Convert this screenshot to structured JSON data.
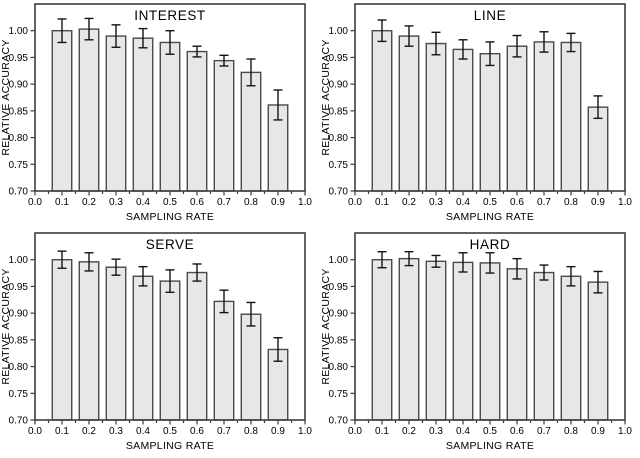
{
  "figure": {
    "background": "#ffffff",
    "bar_fill": "#e7e7e7",
    "bar_stroke": "#4a4a4a",
    "frame_color": "#3d3d3d",
    "tick_color": "#3d3d3d",
    "error_bar_color": "#141414",
    "text_color": "#000000"
  },
  "chart_data": [
    {
      "type": "bar",
      "title": "INTEREST",
      "xlabel": "SAMPLING RATE",
      "ylabel": "RELATIVE ACCURACY",
      "categories": [
        0.1,
        0.2,
        0.3,
        0.4,
        0.5,
        0.6,
        0.7,
        0.8,
        0.9
      ],
      "values": [
        1.0,
        1.003,
        0.99,
        0.986,
        0.978,
        0.961,
        0.944,
        0.922,
        0.861
      ],
      "errors": [
        0.022,
        0.02,
        0.021,
        0.018,
        0.022,
        0.01,
        0.01,
        0.025,
        0.028
      ],
      "xlim": [
        0.0,
        1.0
      ],
      "ylim": [
        0.7,
        1.05
      ],
      "xticks": [
        0.0,
        0.1,
        0.2,
        0.3,
        0.4,
        0.5,
        0.6,
        0.7,
        0.8,
        0.9,
        1.0
      ],
      "xtick_labels": [
        "0.0",
        "0.1",
        "0.2",
        "0.3",
        "0.4",
        "0.5",
        "0.6",
        "0.7",
        "0.8",
        "0.9",
        "1.0"
      ],
      "x_minor_step": 0.05,
      "yticks": [
        0.7,
        0.75,
        0.8,
        0.85,
        0.9,
        0.95,
        1.0
      ],
      "ytick_labels": [
        "0.70",
        "0.75",
        "0.80",
        "0.85",
        "0.90",
        "0.95",
        "1.00"
      ],
      "grid": false,
      "legend": null
    },
    {
      "type": "bar",
      "title": "LINE",
      "xlabel": "SAMPLING RATE",
      "ylabel": "RELATIVE ACCURACY",
      "categories": [
        0.1,
        0.2,
        0.3,
        0.4,
        0.5,
        0.6,
        0.7,
        0.8,
        0.9
      ],
      "values": [
        1.0,
        0.99,
        0.976,
        0.965,
        0.957,
        0.971,
        0.979,
        0.978,
        0.857
      ],
      "errors": [
        0.02,
        0.019,
        0.021,
        0.018,
        0.022,
        0.02,
        0.019,
        0.017,
        0.021
      ],
      "xlim": [
        0.0,
        1.0
      ],
      "ylim": [
        0.7,
        1.05
      ],
      "xticks": [
        0.0,
        0.1,
        0.2,
        0.3,
        0.4,
        0.5,
        0.6,
        0.7,
        0.8,
        0.9,
        1.0
      ],
      "xtick_labels": [
        "0.0",
        "0.1",
        "0.2",
        "0.3",
        "0.4",
        "0.5",
        "0.6",
        "0.7",
        "0.8",
        "0.9",
        "1.0"
      ],
      "x_minor_step": 0.05,
      "yticks": [
        0.7,
        0.75,
        0.8,
        0.85,
        0.9,
        0.95,
        1.0
      ],
      "ytick_labels": [
        "0.70",
        "0.75",
        "0.80",
        "0.85",
        "0.90",
        "0.95",
        "1.00"
      ],
      "grid": false,
      "legend": null
    },
    {
      "type": "bar",
      "title": "SERVE",
      "xlabel": "SAMPLING RATE",
      "ylabel": "RELATIVE ACCURACY",
      "categories": [
        0.1,
        0.2,
        0.3,
        0.4,
        0.5,
        0.6,
        0.7,
        0.8,
        0.9
      ],
      "values": [
        1.0,
        0.996,
        0.986,
        0.969,
        0.96,
        0.976,
        0.922,
        0.898,
        0.832
      ],
      "errors": [
        0.016,
        0.017,
        0.015,
        0.018,
        0.021,
        0.016,
        0.021,
        0.022,
        0.022
      ],
      "xlim": [
        0.0,
        1.0
      ],
      "ylim": [
        0.7,
        1.05
      ],
      "xticks": [
        0.0,
        0.1,
        0.2,
        0.3,
        0.4,
        0.5,
        0.6,
        0.7,
        0.8,
        0.9,
        1.0
      ],
      "xtick_labels": [
        "0.0",
        "0.1",
        "0.2",
        "0.3",
        "0.4",
        "0.5",
        "0.6",
        "0.7",
        "0.8",
        "0.9",
        "1.0"
      ],
      "x_minor_step": 0.05,
      "yticks": [
        0.7,
        0.75,
        0.8,
        0.85,
        0.9,
        0.95,
        1.0
      ],
      "ytick_labels": [
        "0.70",
        "0.75",
        "0.80",
        "0.85",
        "0.90",
        "0.95",
        "1.00"
      ],
      "grid": false,
      "legend": null
    },
    {
      "type": "bar",
      "title": "HARD",
      "xlabel": "SAMPLING RATE",
      "ylabel": "RELATIVE ACCURACY",
      "categories": [
        0.1,
        0.2,
        0.3,
        0.4,
        0.5,
        0.6,
        0.7,
        0.8,
        0.9
      ],
      "values": [
        1.0,
        1.002,
        0.997,
        0.995,
        0.994,
        0.983,
        0.976,
        0.969,
        0.958
      ],
      "errors": [
        0.015,
        0.013,
        0.011,
        0.018,
        0.019,
        0.019,
        0.014,
        0.018,
        0.02
      ],
      "xlim": [
        0.0,
        1.0
      ],
      "ylim": [
        0.7,
        1.05
      ],
      "xticks": [
        0.0,
        0.1,
        0.2,
        0.3,
        0.4,
        0.5,
        0.6,
        0.7,
        0.8,
        0.9,
        1.0
      ],
      "xtick_labels": [
        "0.0",
        "0.1",
        "0.2",
        "0.3",
        "0.4",
        "0.5",
        "0.6",
        "0.7",
        "0.8",
        "0.9",
        "1.0"
      ],
      "x_minor_step": 0.05,
      "yticks": [
        0.7,
        0.75,
        0.8,
        0.85,
        0.9,
        0.95,
        1.0
      ],
      "ytick_labels": [
        "0.70",
        "0.75",
        "0.80",
        "0.85",
        "0.90",
        "0.95",
        "1.00"
      ],
      "grid": false,
      "legend": null
    }
  ]
}
